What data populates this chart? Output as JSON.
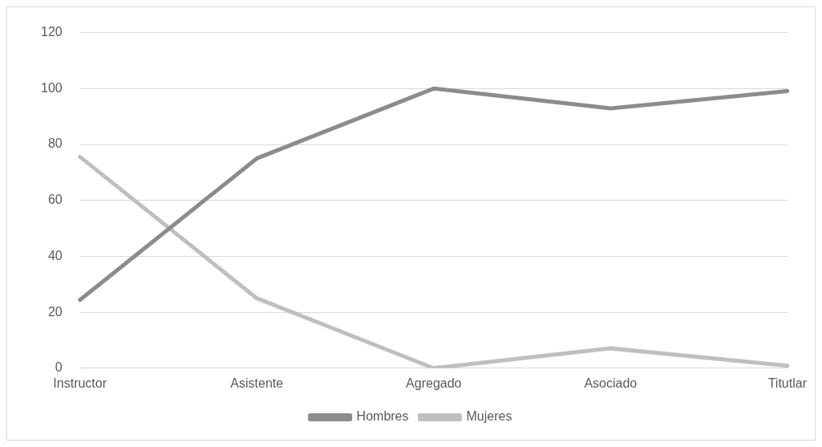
{
  "chart_data": {
    "type": "line",
    "categories": [
      "Instructor",
      "Asistente",
      "Agregado",
      "Asociado",
      "Titutlar"
    ],
    "series": [
      {
        "name": "Hombres",
        "color": "#8c8c8c",
        "values": [
          24.4,
          75,
          100,
          92.9,
          99.1
        ]
      },
      {
        "name": "Mujeres",
        "color": "#bfbfbf",
        "values": [
          75.6,
          25,
          0,
          7.1,
          0.9
        ]
      }
    ],
    "ylim": [
      0,
      120
    ],
    "yticks": [
      0,
      20,
      40,
      60,
      80,
      100,
      120
    ],
    "grid": "y",
    "legend": "bottom",
    "marker": "none",
    "line_style": "solid"
  }
}
